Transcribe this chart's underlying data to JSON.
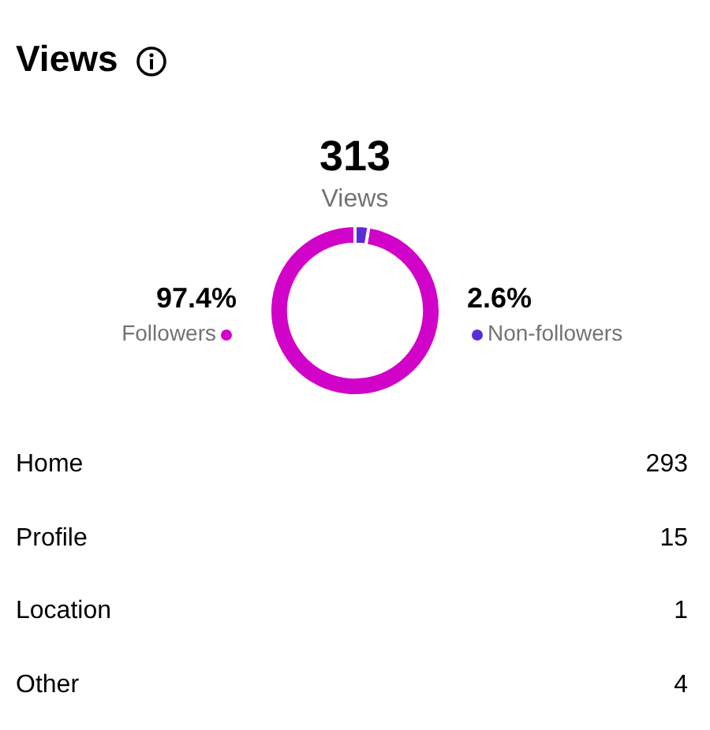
{
  "chart_data": [
    {
      "type": "donut",
      "title": "Views",
      "annotations": [
        "313",
        "Views"
      ],
      "categories": [
        "Followers",
        "Non-followers"
      ],
      "values": [
        97.4,
        2.6
      ],
      "colors": [
        "#d103c9",
        "#5a2bd8"
      ],
      "value_labels": [
        "97.4%",
        "2.6%"
      ]
    },
    {
      "type": "other",
      "categories": [
        "Home",
        "Profile",
        "Location",
        "Other"
      ],
      "values": [
        293,
        15,
        1,
        4
      ],
      "data_labels": true
    }
  ]
}
